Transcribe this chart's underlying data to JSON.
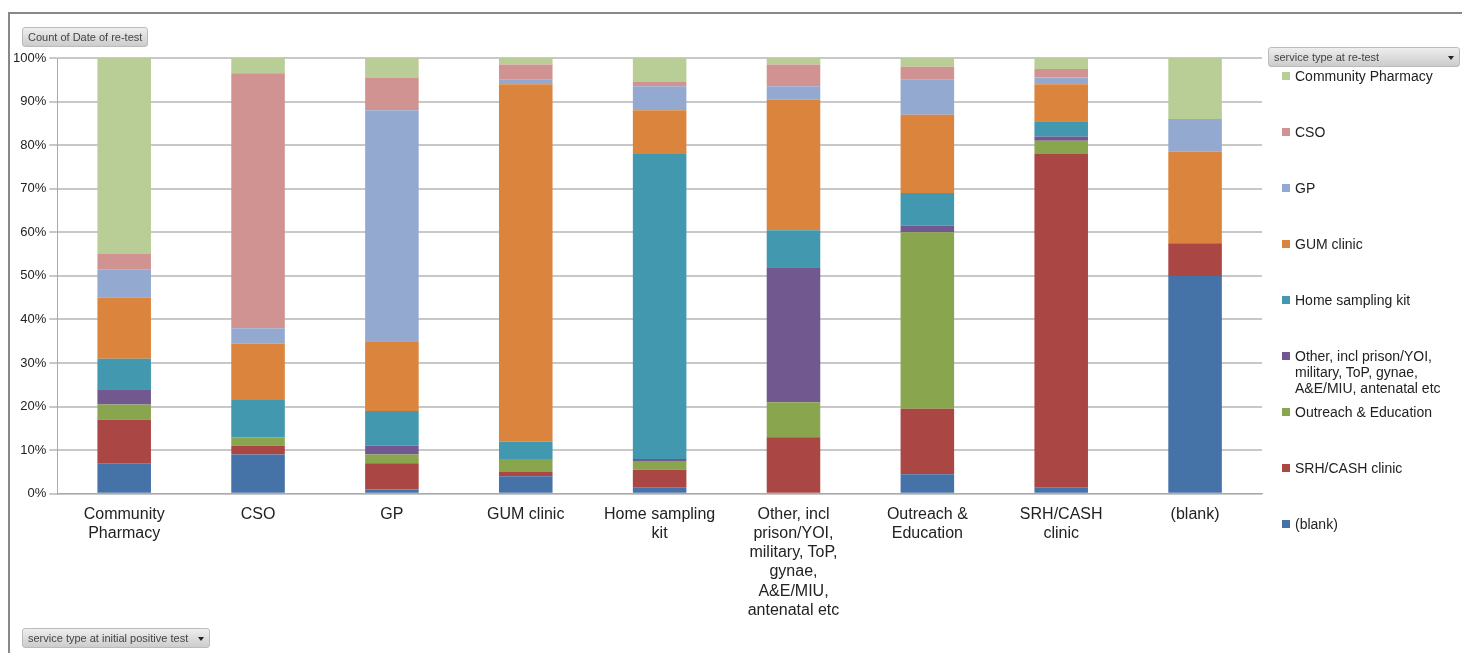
{
  "chart_data": {
    "type": "bar",
    "stacked": true,
    "ylabel": "Count of Date of re-test",
    "legend_title": "service type at re-test",
    "xlabel": "service type at initial positive test",
    "categories": [
      "Community Pharmacy",
      "CSO",
      "GP",
      "GUM clinic",
      "Home sampling kit",
      "Other, incl prison/YOI, military, ToP, gynae, A&E/MIU, antenatal etc",
      "Outreach & Education",
      "SRH/CASH clinic",
      "(blank)"
    ],
    "series": [
      {
        "name": "(blank)",
        "color": "#4572a7",
        "values": [
          7,
          9,
          1,
          4,
          1.5,
          0,
          4.5,
          1.5,
          50
        ]
      },
      {
        "name": "SRH/CASH clinic",
        "color": "#aa4643",
        "values": [
          10,
          2,
          6,
          1,
          4,
          13,
          15,
          76.5,
          7.5
        ]
      },
      {
        "name": "Outreach & Education",
        "color": "#89a54e",
        "values": [
          3.5,
          2,
          2,
          3,
          2,
          8,
          40.5,
          3,
          0
        ]
      },
      {
        "name": "Other, incl prison/YOI, military, ToP, gynae, A&E/MIU, antenatal etc",
        "color": "#71588f",
        "values": [
          3.5,
          0,
          2,
          0,
          0.5,
          31,
          1.5,
          1,
          0
        ]
      },
      {
        "name": "Home sampling kit",
        "color": "#4198af",
        "values": [
          7,
          8.5,
          8,
          4,
          70,
          8.5,
          7.5,
          3.5,
          0
        ]
      },
      {
        "name": "GUM clinic",
        "color": "#db843d",
        "values": [
          14,
          13,
          16,
          82,
          10,
          30,
          18,
          8.5,
          21
        ]
      },
      {
        "name": "GP",
        "color": "#93a9cf",
        "values": [
          6.5,
          3.5,
          53,
          1,
          5.5,
          3,
          8,
          1.5,
          7.5
        ]
      },
      {
        "name": "CSO",
        "color": "#d19392",
        "values": [
          3.5,
          58.5,
          7.5,
          3.5,
          1,
          5,
          3,
          2,
          0
        ]
      },
      {
        "name": "Community Pharmacy",
        "color": "#b9cd96",
        "values": [
          45,
          3.5,
          4.5,
          1.5,
          5.5,
          1.5,
          2,
          2.5,
          14
        ]
      }
    ],
    "ylim": [
      0,
      100
    ],
    "yticks": [
      {
        "value": 0,
        "label": "0%"
      },
      {
        "value": 10,
        "label": "10%"
      },
      {
        "value": 20,
        "label": "20%"
      },
      {
        "value": 30,
        "label": "30%"
      },
      {
        "value": 40,
        "label": "40%"
      },
      {
        "value": 50,
        "label": "50%"
      },
      {
        "value": 60,
        "label": "60%"
      },
      {
        "value": 70,
        "label": "70%"
      },
      {
        "value": 80,
        "label": "80%"
      },
      {
        "value": 90,
        "label": "90%"
      },
      {
        "value": 100,
        "label": "100%"
      }
    ],
    "grid": "y",
    "legend": "right"
  }
}
